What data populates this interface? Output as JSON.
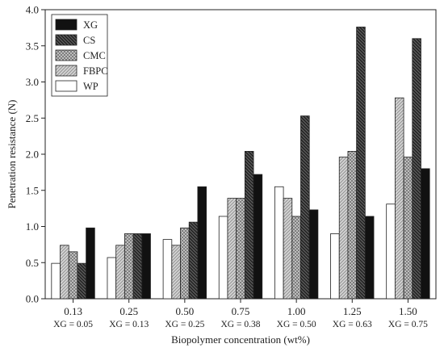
{
  "chart_data": {
    "type": "bar",
    "xlabel": "Biopolymer concentration (wt%)",
    "ylabel": "Penetration resistance (N)",
    "ylim": [
      0,
      4.0
    ],
    "yticks": [
      "0.0",
      "0.5",
      "1.0",
      "1.5",
      "2.0",
      "2.5",
      "3.0",
      "3.5",
      "4.0"
    ],
    "categories": [
      "0.13",
      "0.25",
      "0.50",
      "0.75",
      "1.00",
      "1.25",
      "1.50"
    ],
    "sub_categories": [
      "XG = 0.05",
      "XG = 0.13",
      "XG = 0.25",
      "XG = 0.38",
      "XG = 0.50",
      "XG = 0.63",
      "XG = 0.75"
    ],
    "legend_position": "top-left",
    "grid": false,
    "series": [
      {
        "name": "WP",
        "pattern": "white",
        "values": [
          0.49,
          0.57,
          0.82,
          1.14,
          1.55,
          0.9,
          1.31
        ]
      },
      {
        "name": "FBPC",
        "pattern": "light-diagonal",
        "values": [
          0.74,
          0.74,
          0.74,
          1.39,
          1.39,
          1.96,
          2.78
        ]
      },
      {
        "name": "CMC",
        "pattern": "crosshatch",
        "values": [
          0.65,
          0.9,
          0.98,
          1.39,
          1.14,
          2.04,
          1.96
        ]
      },
      {
        "name": "CS",
        "pattern": "dark-diagonal",
        "values": [
          0.49,
          0.9,
          1.06,
          2.04,
          2.53,
          3.76,
          3.6
        ]
      },
      {
        "name": "XG",
        "pattern": "black",
        "values": [
          0.98,
          0.9,
          1.55,
          1.72,
          1.23,
          1.14,
          1.8
        ]
      }
    ],
    "legend_order": [
      "XG",
      "CS",
      "CMC",
      "FBPC",
      "WP"
    ]
  }
}
